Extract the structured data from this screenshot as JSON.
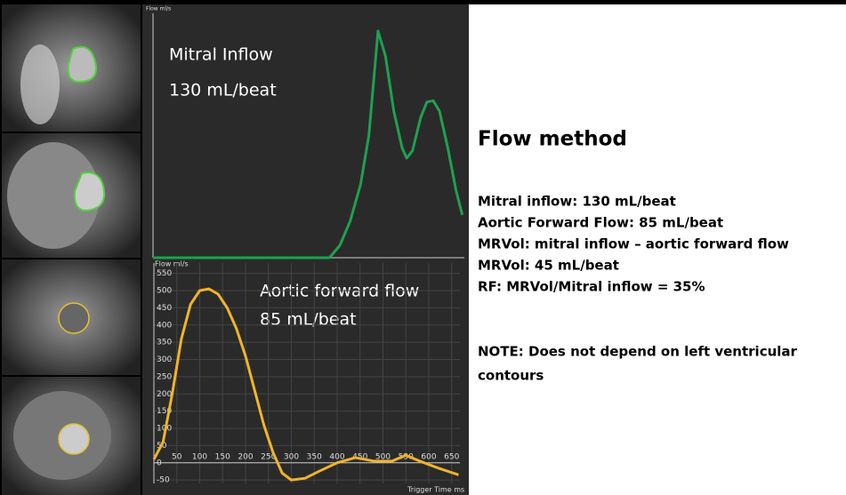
{
  "chart_data": [
    {
      "type": "line",
      "y_label": "Flow ml/s",
      "annotations": [
        "Mitral Inflow",
        "130 mL/beat"
      ],
      "x": [
        0,
        100,
        200,
        300,
        400,
        425,
        450,
        475,
        500,
        520,
        542,
        560,
        580,
        600,
        611,
        625,
        645,
        660,
        675,
        690,
        710,
        730,
        745
      ],
      "series": [
        {
          "color": "#1fa050",
          "values": [
            0,
            0,
            0,
            0,
            0,
            0,
            20,
            60,
            120,
            200,
            371,
            330,
            240,
            180,
            163,
            175,
            230,
            255,
            257,
            240,
            180,
            110,
            70
          ]
        }
      ],
      "xlim": [
        0,
        750
      ],
      "ylim": [
        0,
        400
      ]
    },
    {
      "type": "line",
      "y_label": "Flow ml/s",
      "x_label": "Trigger Time ms",
      "annotations": [
        "Aortic forward flow",
        "85 mL/beat"
      ],
      "x": [
        0,
        20,
        40,
        60,
        80,
        100,
        120,
        140,
        160,
        180,
        200,
        220,
        240,
        260,
        280,
        300,
        330,
        360,
        400,
        440,
        480,
        520,
        550,
        580,
        620,
        665
      ],
      "series": [
        {
          "color": "#f0b428",
          "values": [
            10,
            60,
            200,
            360,
            460,
            500,
            505,
            490,
            450,
            390,
            310,
            210,
            110,
            30,
            -30,
            -50,
            -45,
            -25,
            0,
            15,
            5,
            5,
            22,
            5,
            -15,
            -35
          ]
        }
      ],
      "xlim": [
        0,
        668
      ],
      "ylim": [
        -60,
        580
      ],
      "xticks": [
        50,
        100,
        150,
        200,
        250,
        300,
        350,
        400,
        450,
        500,
        550,
        600,
        650
      ],
      "yticks": [
        -50,
        0,
        50,
        100,
        150,
        200,
        250,
        300,
        350,
        400,
        450,
        500,
        550
      ],
      "grid": true
    }
  ],
  "panel": {
    "title": "Flow method",
    "lines": [
      "Mitral inflow: 130 mL/beat",
      "Aortic Forward Flow: 85 mL/beat",
      "MRVol: mitral inflow – aortic forward flow",
      "MRVol: 45 mL/beat",
      "RF: MRVol/Mitral inflow = 35%"
    ],
    "note": [
      "NOTE: Does not depend on left ventricular",
      "contours"
    ]
  }
}
